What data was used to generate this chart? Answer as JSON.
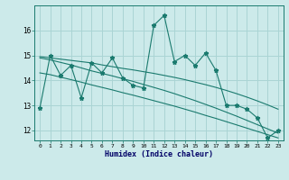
{
  "x": [
    0,
    1,
    2,
    3,
    4,
    5,
    6,
    7,
    8,
    9,
    10,
    11,
    12,
    13,
    14,
    15,
    16,
    17,
    18,
    19,
    20,
    21,
    22,
    23
  ],
  "y_main": [
    12.9,
    15.0,
    14.2,
    14.6,
    13.3,
    14.7,
    14.3,
    14.9,
    14.1,
    13.8,
    13.7,
    16.2,
    16.6,
    14.75,
    15.0,
    14.6,
    15.1,
    14.4,
    13.0,
    13.0,
    12.85,
    12.5,
    11.7,
    12.0
  ],
  "y_trend1": [
    14.95,
    14.9,
    14.85,
    14.8,
    14.75,
    14.7,
    14.62,
    14.55,
    14.48,
    14.42,
    14.35,
    14.28,
    14.2,
    14.12,
    14.03,
    13.93,
    13.83,
    13.72,
    13.6,
    13.47,
    13.33,
    13.18,
    13.02,
    12.85
  ],
  "y_trend2": [
    14.9,
    14.82,
    14.72,
    14.62,
    14.5,
    14.38,
    14.28,
    14.18,
    14.07,
    13.96,
    13.84,
    13.72,
    13.6,
    13.47,
    13.33,
    13.19,
    13.04,
    12.89,
    12.73,
    12.57,
    12.4,
    12.23,
    12.06,
    11.89
  ],
  "y_trend3": [
    14.3,
    14.23,
    14.13,
    14.03,
    13.93,
    13.82,
    13.72,
    13.62,
    13.51,
    13.41,
    13.3,
    13.19,
    13.08,
    12.97,
    12.85,
    12.73,
    12.6,
    12.48,
    12.35,
    12.22,
    12.09,
    11.96,
    11.83,
    11.7
  ],
  "line_color": "#1a7a6e",
  "bg_color": "#cceaea",
  "grid_color": "#aad4d4",
  "xlabel": "Humidex (Indice chaleur)",
  "yticks": [
    12,
    13,
    14,
    15,
    16
  ],
  "xticks": [
    0,
    1,
    2,
    3,
    4,
    5,
    6,
    7,
    8,
    9,
    10,
    11,
    12,
    13,
    14,
    15,
    16,
    17,
    18,
    19,
    20,
    21,
    22,
    23
  ],
  "ylim": [
    11.6,
    17.0
  ],
  "xlim": [
    -0.5,
    23.5
  ]
}
